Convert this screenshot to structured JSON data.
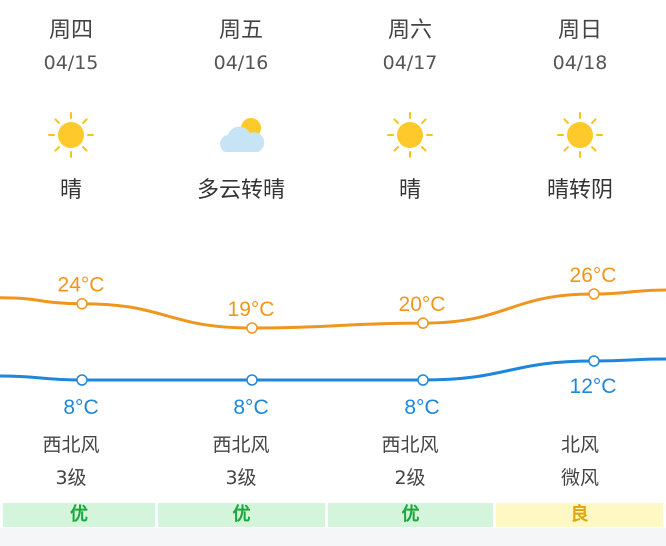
{
  "days": [
    {
      "day": "周四",
      "date": "04/15",
      "icon": "sun-icon",
      "condition": "晴",
      "high": 24,
      "high_label": "24°C",
      "low": 8,
      "low_label": "8°C",
      "wind_dir": "西北风",
      "wind_level": "3级",
      "aqi": "优",
      "aqi_level": "good"
    },
    {
      "day": "周五",
      "date": "04/16",
      "icon": "partly-cloudy-icon",
      "condition": "多云转晴",
      "high": 19,
      "high_label": "19°C",
      "low": 8,
      "low_label": "8°C",
      "wind_dir": "西北风",
      "wind_level": "3级",
      "aqi": "优",
      "aqi_level": "good"
    },
    {
      "day": "周六",
      "date": "04/17",
      "icon": "sun-icon",
      "condition": "晴",
      "high": 20,
      "high_label": "20°C",
      "low": 8,
      "low_label": "8°C",
      "wind_dir": "西北风",
      "wind_level": "2级",
      "aqi": "优",
      "aqi_level": "good"
    },
    {
      "day": "周日",
      "date": "04/18",
      "icon": "sun-icon",
      "condition": "晴转阴",
      "high": 26,
      "high_label": "26°C",
      "low": 12,
      "low_label": "12°C",
      "wind_dir": "北风",
      "wind_level": "微风",
      "aqi": "良",
      "aqi_level": "moderate"
    }
  ],
  "colors": {
    "high": "#f0961e",
    "low": "#1f86d9",
    "aqi_good_bg": "#d4f5dc",
    "aqi_good_text": "#1aa83a",
    "aqi_moderate_bg": "#fdf8c4",
    "aqi_moderate_text": "#e0a50a"
  }
}
